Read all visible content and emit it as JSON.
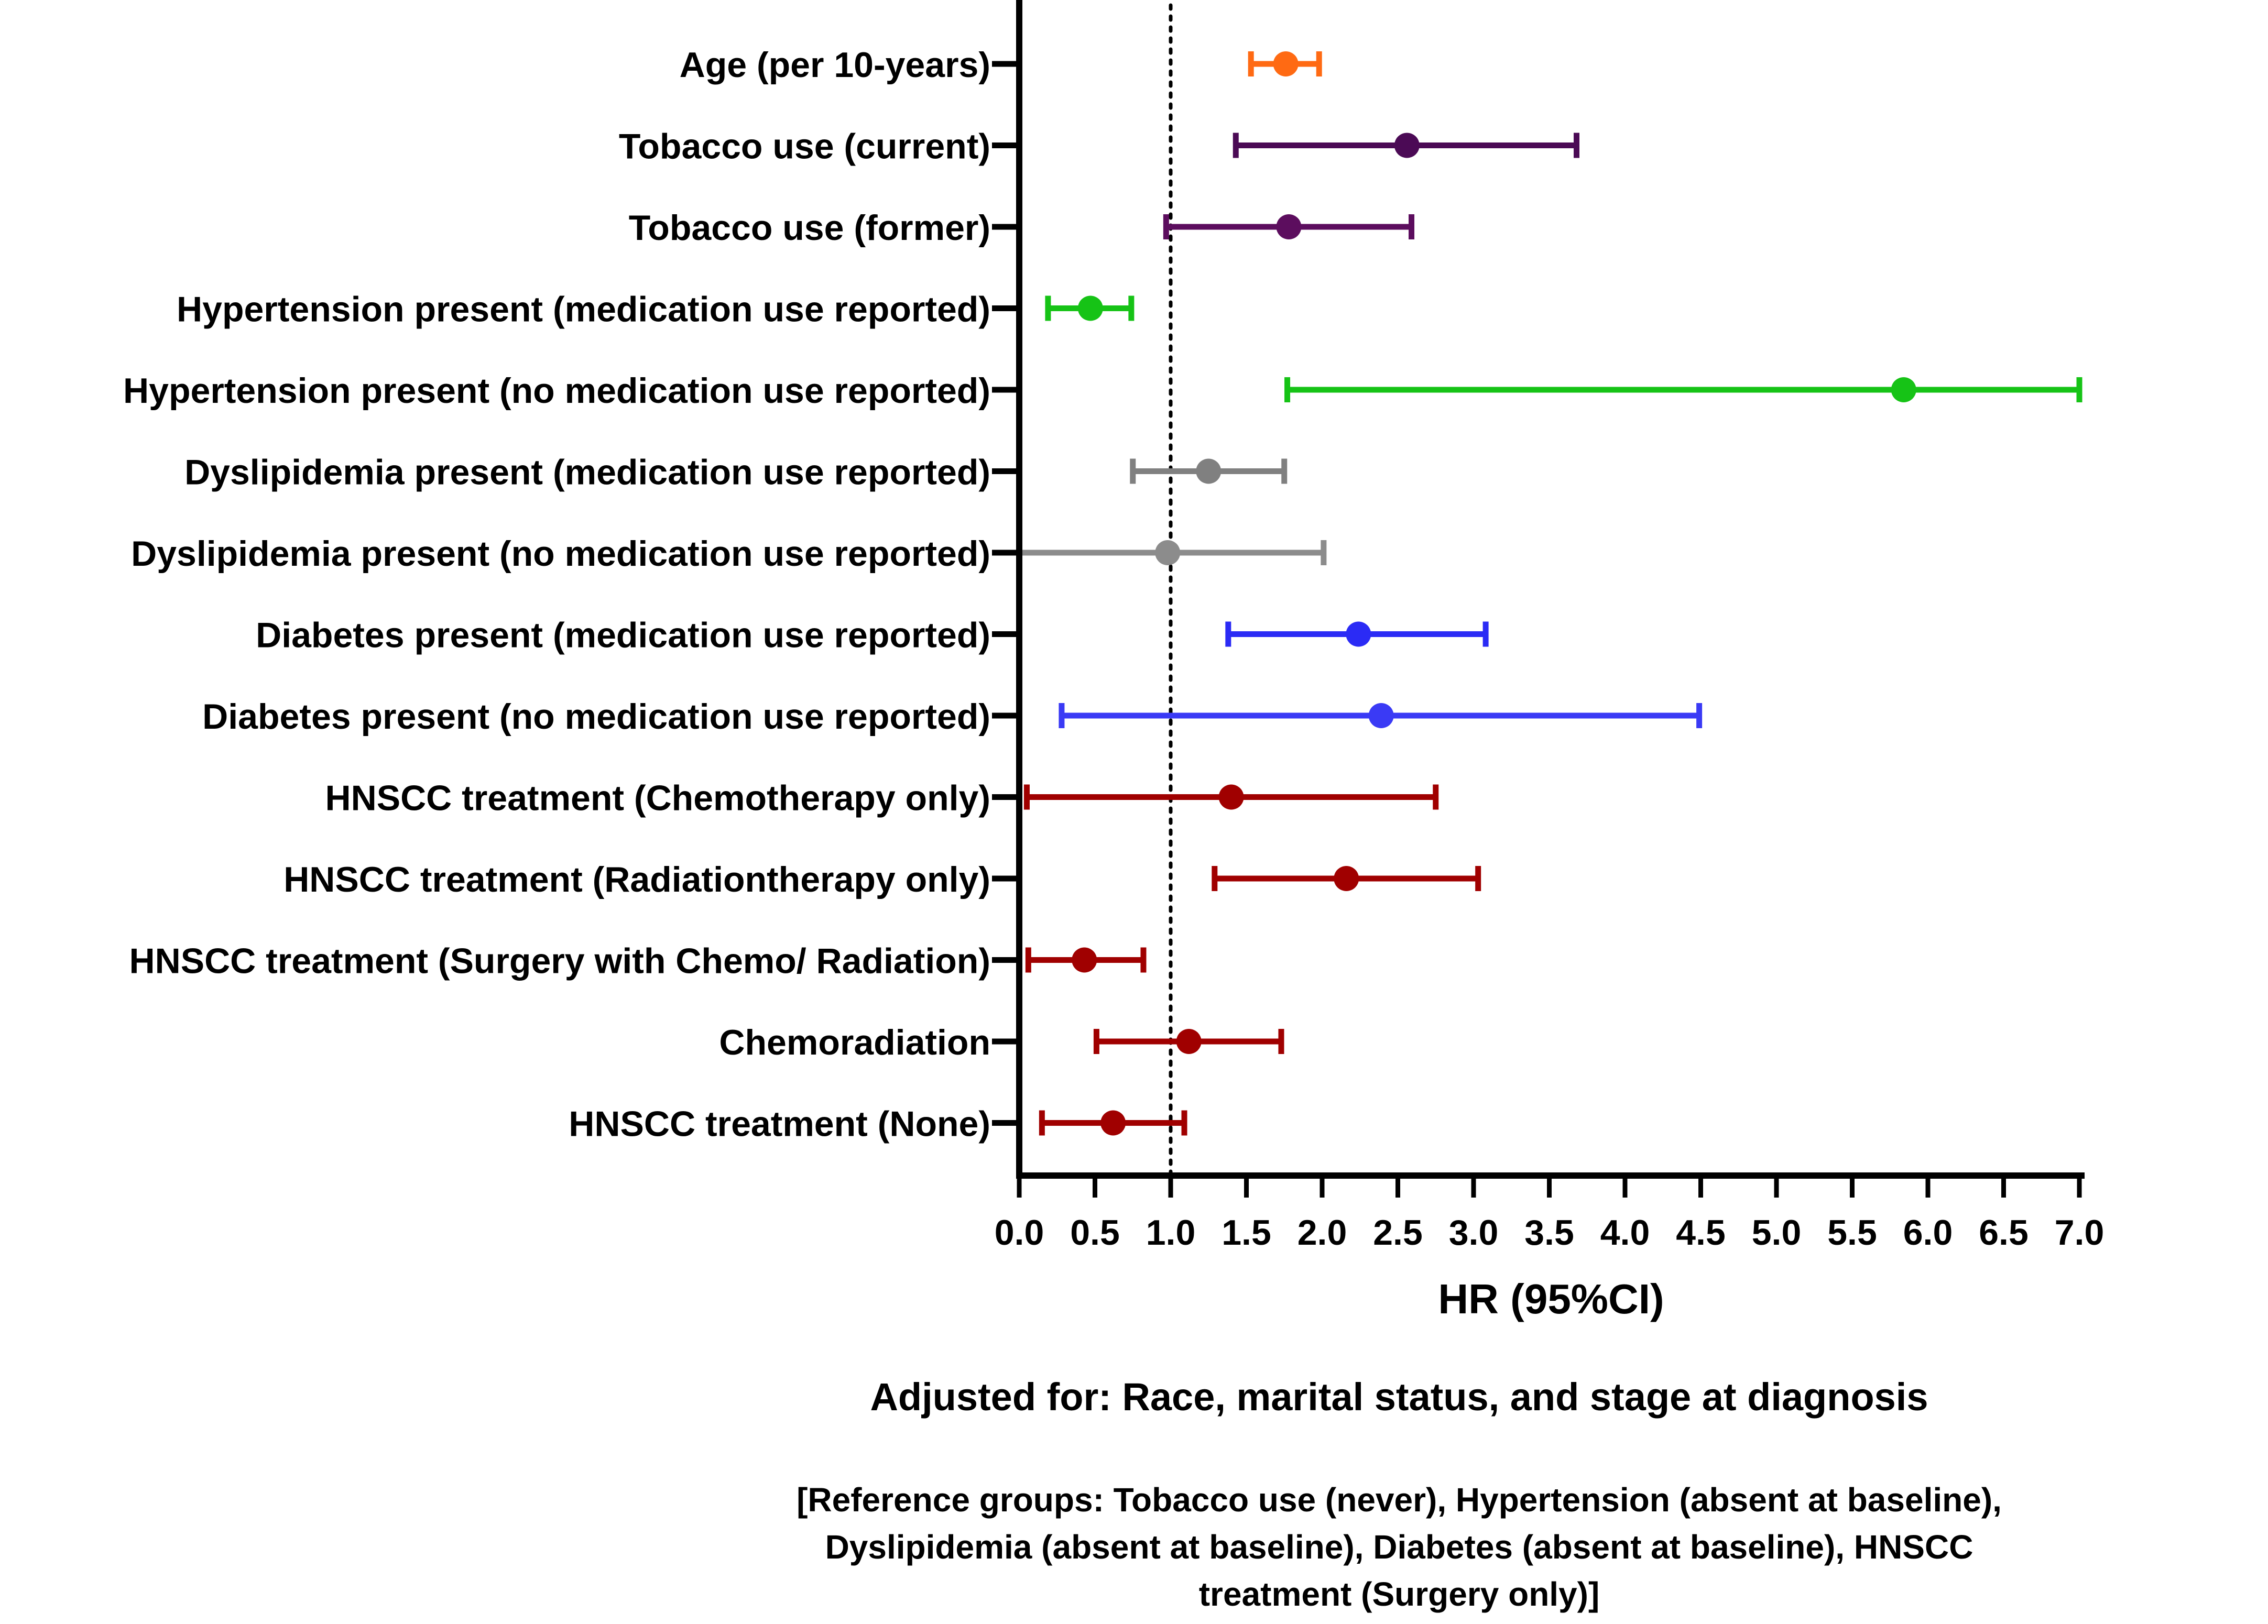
{
  "chart_data": {
    "type": "forest",
    "xlabel": "HR (95%CI)",
    "xlim": [
      0,
      7
    ],
    "xticks": [
      "0.0",
      "0.5",
      "1.0",
      "1.5",
      "2.0",
      "2.5",
      "3.0",
      "3.5",
      "4.0",
      "4.5",
      "5.0",
      "5.5",
      "6.0",
      "6.5",
      "7.0"
    ],
    "reference_line": 1.0,
    "rows": [
      {
        "label": "Age (per 10-years)",
        "hr": 1.76,
        "lower": 1.53,
        "upper": 1.98,
        "color": "#FF6A13"
      },
      {
        "label": "Tobacco use (current)",
        "hr": 2.56,
        "lower": 1.43,
        "upper": 3.68,
        "color": "#4B0A55"
      },
      {
        "label": "Tobacco use (former)",
        "hr": 1.78,
        "lower": 0.97,
        "upper": 2.59,
        "color": "#5C0D5E"
      },
      {
        "label": "Hypertension present (medication use reported)",
        "hr": 0.47,
        "lower": 0.19,
        "upper": 0.74,
        "color": "#16C316"
      },
      {
        "label": "Hypertension present (no medication use reported)",
        "hr": 5.84,
        "lower": 1.77,
        "upper": 7.0,
        "color": "#16C316"
      },
      {
        "label": "Dyslipidemia present (medication use reported)",
        "hr": 1.25,
        "lower": 0.75,
        "upper": 1.75,
        "color": "#808080"
      },
      {
        "label": "Dyslipidemia present (no medication use reported)",
        "hr": 0.98,
        "lower": 0.0,
        "upper": 2.01,
        "color": "#8C8C8C"
      },
      {
        "label": "Diabetes present (medication use reported)",
        "hr": 2.24,
        "lower": 1.38,
        "upper": 3.08,
        "color": "#2B2BF5"
      },
      {
        "label": "Diabetes present (no medication use reported)",
        "hr": 2.39,
        "lower": 0.28,
        "upper": 4.49,
        "color": "#3A3AF5"
      },
      {
        "label": "HNSCC treatment (Chemotherapy only)",
        "hr": 1.4,
        "lower": 0.05,
        "upper": 2.75,
        "color": "#A00000"
      },
      {
        "label": "HNSCC treatment (Radiationtherapy only)",
        "hr": 2.16,
        "lower": 1.29,
        "upper": 3.03,
        "color": "#A00000"
      },
      {
        "label": "HNSCC treatment (Surgery with Chemo/ Radiation)",
        "hr": 0.43,
        "lower": 0.06,
        "upper": 0.82,
        "color": "#A00000"
      },
      {
        "label": "Chemoradiation",
        "hr": 1.12,
        "lower": 0.51,
        "upper": 1.73,
        "color": "#A00000"
      },
      {
        "label": "HNSCC treatment (None)",
        "hr": 0.62,
        "lower": 0.15,
        "upper": 1.09,
        "color": "#A00000"
      }
    ]
  },
  "notes": {
    "adjusted": "Adjusted for: Race, marital status, and stage at diagnosis",
    "reference": "[Reference groups: Tobacco use (never),  Hypertension (absent at baseline), Dyslipidemia (absent at baseline), Diabetes (absent at baseline), HNSCC treatment (Surgery only)]"
  }
}
